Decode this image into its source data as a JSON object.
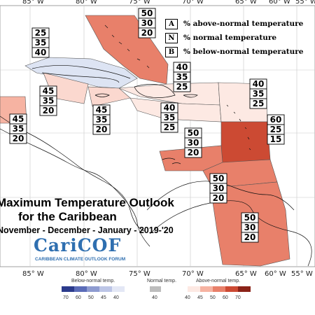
{
  "title": {
    "line1": "Maximum Temperature Outlook",
    "line2": "for the Caribbean",
    "line3": "November - December - January - 2019-'20"
  },
  "logo": {
    "name": "CariCOF",
    "subtitle": "CARIBBEAN CLIMATE OUTLOOK FORUM",
    "color": "#2f6fb0"
  },
  "legend": [
    {
      "key": "A",
      "text": "% above-normal temperature"
    },
    {
      "key": "N",
      "text": "% normal temperature"
    },
    {
      "key": "B",
      "text": "% below-normal temperature"
    }
  ],
  "axis": {
    "longitudes": [
      "85° W",
      "80° W",
      "75° W",
      "70° W",
      "65° W",
      "60° W",
      "55° W"
    ]
  },
  "regions": [
    {
      "name": "bahamas",
      "A": "50",
      "N": "30",
      "B": "20",
      "color": "#e8806a"
    },
    {
      "name": "cuba",
      "A": "25",
      "N": "35",
      "B": "40",
      "color": "#dde4f3"
    },
    {
      "name": "western-caribbean",
      "A": "45",
      "N": "35",
      "B": "20",
      "color": "#fbd8cf"
    },
    {
      "name": "central-america",
      "A": "45",
      "N": "35",
      "B": "20",
      "color": "#f6b3a2"
    },
    {
      "name": "jamaica",
      "A": "45",
      "N": "35",
      "B": "20",
      "color": "#fbd8cf"
    },
    {
      "name": "hispaniola-north",
      "A": "40",
      "N": "35",
      "B": "25",
      "color": "#fde9e3"
    },
    {
      "name": "hispaniola-south",
      "A": "40",
      "N": "35",
      "B": "25",
      "color": "#fde9e3"
    },
    {
      "name": "northern-leewards",
      "A": "40",
      "N": "35",
      "B": "25",
      "color": "#fde9e3"
    },
    {
      "name": "eastern-caribbean",
      "A": "60",
      "N": "25",
      "B": "15",
      "color": "#cc4a33"
    },
    {
      "name": "south-caribbean",
      "A": "50",
      "N": "30",
      "B": "20",
      "color": "#e8806a"
    },
    {
      "name": "trinidad",
      "A": "50",
      "N": "30",
      "B": "20",
      "color": "#e8806a"
    },
    {
      "name": "guianas",
      "A": "50",
      "N": "30",
      "B": "20",
      "color": "#e8806a"
    }
  ],
  "colorbar": {
    "below_title": "Below-normal temp.",
    "normal_title": "Normal temp.",
    "above_title": "Above-normal temp.",
    "below_ticks": [
      "70",
      "60",
      "50",
      "45",
      "40"
    ],
    "normal_ticks": [
      "40"
    ],
    "above_ticks": [
      "40",
      "45",
      "50",
      "60",
      "70"
    ],
    "below_colors": [
      "#2b3b8c",
      "#5b6cb8",
      "#8e9bd0",
      "#bcc5e6",
      "#e3e7f5"
    ],
    "normal_colors": [
      "#bdbdbd"
    ],
    "above_colors": [
      "#fde9e3",
      "#f6b3a2",
      "#e8806a",
      "#cc4a33",
      "#8b2318"
    ]
  }
}
